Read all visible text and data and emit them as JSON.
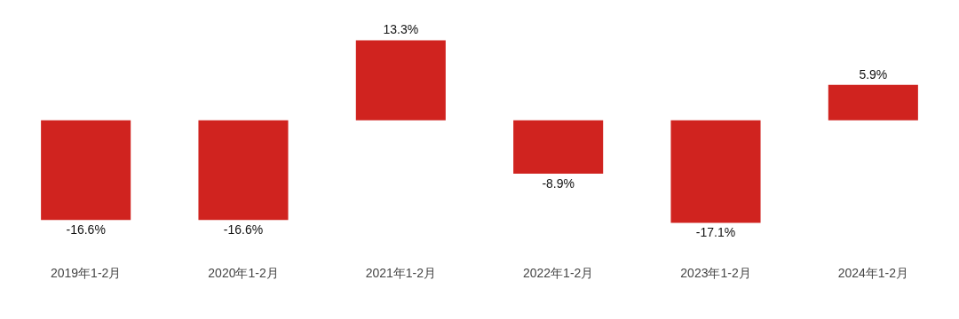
{
  "chart_data": {
    "type": "bar",
    "categories": [
      "2019年1-2月",
      "2020年1-2月",
      "2021年1-2月",
      "2022年1-2月",
      "2023年1-2月",
      "2024年1-2月"
    ],
    "values": [
      -16.6,
      -16.6,
      13.3,
      -8.9,
      -17.1,
      5.9
    ],
    "value_labels": [
      "-16.6%",
      "-16.6%",
      "13.3%",
      "-8.9%",
      "-17.1%",
      "5.9%"
    ],
    "color": "#d0231f",
    "grid": false,
    "legend": false
  }
}
